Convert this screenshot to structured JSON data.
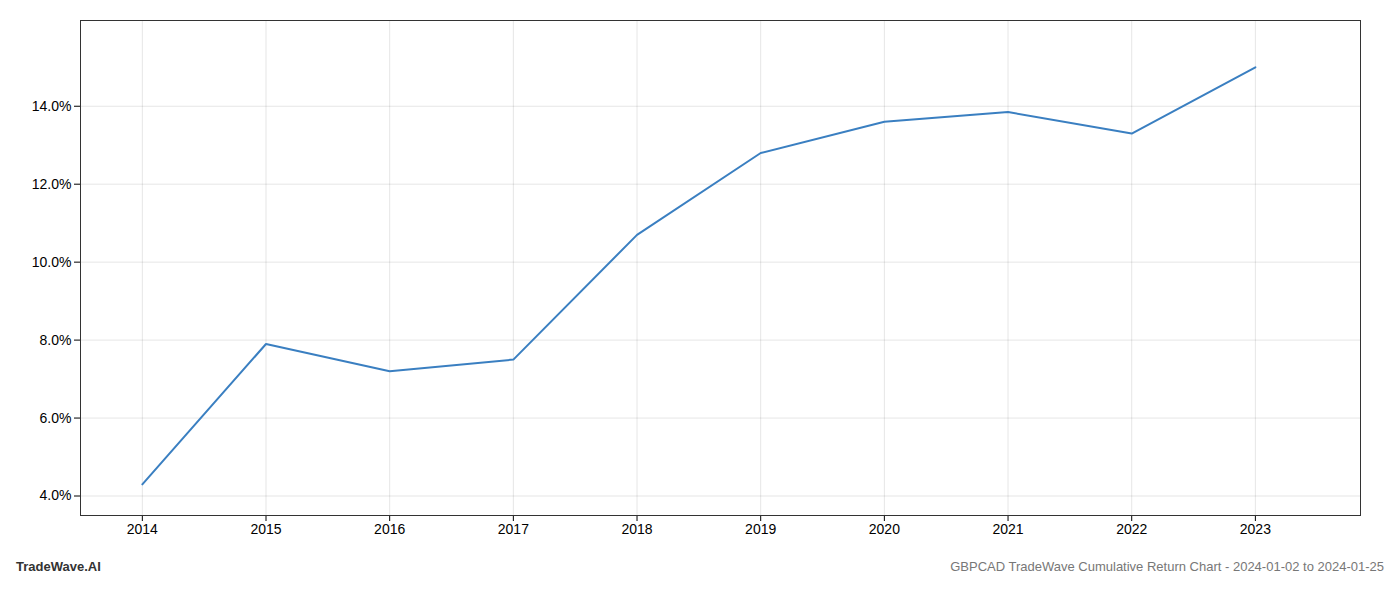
{
  "chart_data": {
    "type": "line",
    "x": [
      2014,
      2015,
      2016,
      2017,
      2018,
      2019,
      2020,
      2021,
      2022,
      2023
    ],
    "values": [
      4.3,
      7.9,
      7.2,
      7.5,
      10.7,
      12.8,
      13.6,
      13.85,
      13.3,
      15.0
    ],
    "color": "#3a7fc1",
    "xlim": [
      2013.5,
      2023.85
    ],
    "ylim": [
      3.5,
      16.2
    ],
    "xticks": [
      2014,
      2015,
      2016,
      2017,
      2018,
      2019,
      2020,
      2021,
      2022,
      2023
    ],
    "yticks": [
      {
        "value": 4.0,
        "label": "4.0%"
      },
      {
        "value": 6.0,
        "label": "6.0%"
      },
      {
        "value": 8.0,
        "label": "8.0%"
      },
      {
        "value": 10.0,
        "label": "10.0%"
      },
      {
        "value": 12.0,
        "label": "12.0%"
      },
      {
        "value": 14.0,
        "label": "14.0%"
      }
    ],
    "grid": true,
    "annotations": [
      "TradeWave.AI",
      "GBPCAD TradeWave Cumulative Return Chart - 2024-01-02 to 2024-01-25"
    ]
  }
}
